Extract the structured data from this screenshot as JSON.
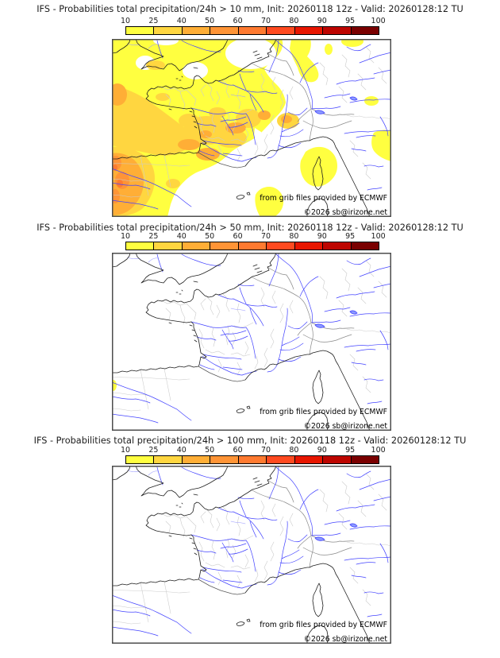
{
  "panels": [
    {
      "title": "IFS - Probabilities total precipitation/24h > 10 mm, Init: 20260118 12z - Valid: 20260128:12 TU",
      "threshold_mm": "10",
      "attribution_line1": "from grib files provided by ECMWF",
      "attribution_line2": "©2026 sb@irizone.net"
    },
    {
      "title": "IFS - Probabilities total precipitation/24h > 50 mm, Init: 20260118 12z - Valid: 20260128:12 TU",
      "threshold_mm": "50",
      "attribution_line1": "from grib files provided by ECMWF",
      "attribution_line2": "©2026 sb@irizone.net"
    },
    {
      "title": "IFS - Probabilities total precipitation/24h > 100 mm, Init: 20260118 12z - Valid: 20260128:12 TU",
      "threshold_mm": "100",
      "attribution_line1": "from grib files provided by ECMWF",
      "attribution_line2": "©2026 sb@irizone.net"
    }
  ],
  "colorbar": {
    "labels": [
      "10",
      "25",
      "40",
      "50",
      "60",
      "70",
      "80",
      "90",
      "95",
      "100"
    ],
    "colors": [
      "#ffff40",
      "#ffd640",
      "#ffae36",
      "#ff9436",
      "#ff7a30",
      "#ff4a20",
      "#e81600",
      "#bd0500",
      "#7a0000"
    ]
  },
  "map_colors": {
    "coastline": "#1f1f1f",
    "country_border": "#8a8a8a",
    "admin_border": "#cccccc",
    "river": "#4343ff",
    "frame": "#4d4d4d",
    "background": "#ffffff"
  },
  "chart_data": {
    "type": "heatmap",
    "title": "IFS ensemble probabilities of 24h total precipitation over France",
    "legend_thresholds_percent": [
      10,
      25,
      40,
      50,
      60,
      70,
      80,
      90,
      95,
      100
    ],
    "maps": [
      {
        "threshold": "> 10 mm",
        "coverage": "widespread 10-40% over England, France, Bay of Biscay and Spain; 40-70% spots near NW Spain and Atlantic edge; white over SE France, Alps and top-right"
      },
      {
        "threshold": "> 50 mm",
        "coverage": "near zero everywhere; single small 10-25% spot at west edge of Spain"
      },
      {
        "threshold": "> 100 mm",
        "coverage": "zero everywhere"
      }
    ]
  }
}
